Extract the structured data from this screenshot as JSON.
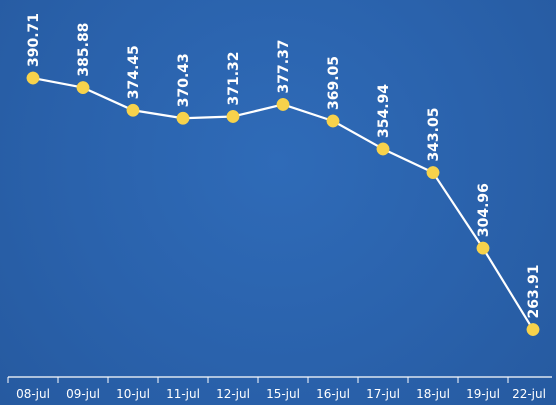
{
  "chart_data": {
    "type": "line",
    "title": "",
    "xlabel": "",
    "ylabel": "",
    "categories": [
      "08-jul",
      "09-jul",
      "10-jul",
      "11-jul",
      "12-jul",
      "15-jul",
      "16-jul",
      "17-jul",
      "18-jul",
      "19-jul",
      "22-jul"
    ],
    "series": [
      {
        "values": [
          390.71,
          385.88,
          374.45,
          370.43,
          371.32,
          377.37,
          369.05,
          354.94,
          343.05,
          304.96,
          263.91
        ],
        "labels": [
          "390.71",
          "385.88",
          "374.45",
          "370.43",
          "371.32",
          "377.37",
          "369.05",
          "354.94",
          "343.05",
          "304.96",
          "263.91"
        ]
      }
    ],
    "ylim": [
      242,
      425
    ],
    "grid": false,
    "legend": "none",
    "colors": {
      "background": "#2a62ac",
      "line": "#ffffff",
      "marker": "#f7d24b",
      "text": "#ffffff"
    }
  }
}
